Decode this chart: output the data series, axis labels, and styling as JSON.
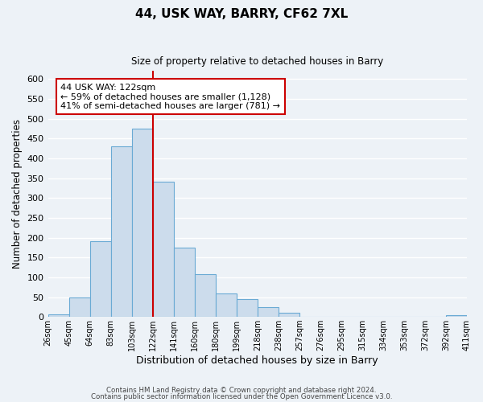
{
  "title": "44, USK WAY, BARRY, CF62 7XL",
  "subtitle": "Size of property relative to detached houses in Barry",
  "xlabel": "Distribution of detached houses by size in Barry",
  "ylabel": "Number of detached properties",
  "bin_labels": [
    "26sqm",
    "45sqm",
    "64sqm",
    "83sqm",
    "103sqm",
    "122sqm",
    "141sqm",
    "160sqm",
    "180sqm",
    "199sqm",
    "218sqm",
    "238sqm",
    "257sqm",
    "276sqm",
    "295sqm",
    "315sqm",
    "334sqm",
    "353sqm",
    "372sqm",
    "392sqm",
    "411sqm"
  ],
  "bar_values": [
    7,
    50,
    190,
    430,
    475,
    340,
    175,
    108,
    60,
    44,
    25,
    10,
    0,
    0,
    0,
    0,
    0,
    0,
    0,
    5
  ],
  "bar_color": "#ccdcec",
  "bar_edge_color": "#6aaad4",
  "vline_x_index": 5,
  "vline_color": "#cc0000",
  "annotation_title": "44 USK WAY: 122sqm",
  "annotation_line1": "← 59% of detached houses are smaller (1,128)",
  "annotation_line2": "41% of semi-detached houses are larger (781) →",
  "annotation_box_color": "white",
  "annotation_box_edge": "#cc0000",
  "ylim": [
    0,
    620
  ],
  "yticks": [
    0,
    50,
    100,
    150,
    200,
    250,
    300,
    350,
    400,
    450,
    500,
    550,
    600
  ],
  "footer1": "Contains HM Land Registry data © Crown copyright and database right 2024.",
  "footer2": "Contains public sector information licensed under the Open Government Licence v3.0.",
  "background_color": "#edf2f7",
  "grid_color": "#ffffff"
}
